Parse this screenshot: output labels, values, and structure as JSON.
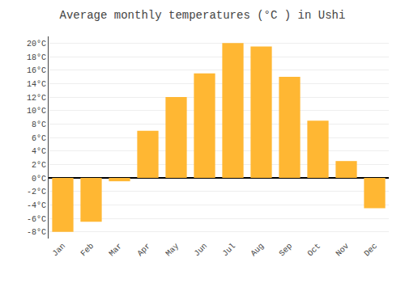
{
  "chart_data": {
    "type": "bar",
    "title": "Average monthly temperatures (°C ) in Ushi",
    "categories": [
      "Jan",
      "Feb",
      "Mar",
      "Apr",
      "May",
      "Jun",
      "Jul",
      "Aug",
      "Sep",
      "Oct",
      "Nov",
      "Dec"
    ],
    "values": [
      -8,
      -6.5,
      -0.5,
      7,
      12,
      15.5,
      20,
      19.5,
      15,
      8.5,
      2.5,
      -4.5
    ],
    "color": "#FFB733",
    "ylim": [
      -9,
      21
    ],
    "yticks": [
      {
        "value": -8,
        "label": "-8°C"
      },
      {
        "value": -6,
        "label": "-6°C"
      },
      {
        "value": -4,
        "label": "-4°C"
      },
      {
        "value": -2,
        "label": "-2°C"
      },
      {
        "value": 0,
        "label": "0°C"
      },
      {
        "value": 2,
        "label": "2°C"
      },
      {
        "value": 4,
        "label": "4°C"
      },
      {
        "value": 6,
        "label": "6°C"
      },
      {
        "value": 8,
        "label": "8°C"
      },
      {
        "value": 10,
        "label": "10°C"
      },
      {
        "value": 12,
        "label": "12°C"
      },
      {
        "value": 14,
        "label": "14°C"
      },
      {
        "value": 16,
        "label": "16°C"
      },
      {
        "value": 18,
        "label": "18°C"
      },
      {
        "value": 20,
        "label": "20°C"
      }
    ],
    "grid": true
  }
}
